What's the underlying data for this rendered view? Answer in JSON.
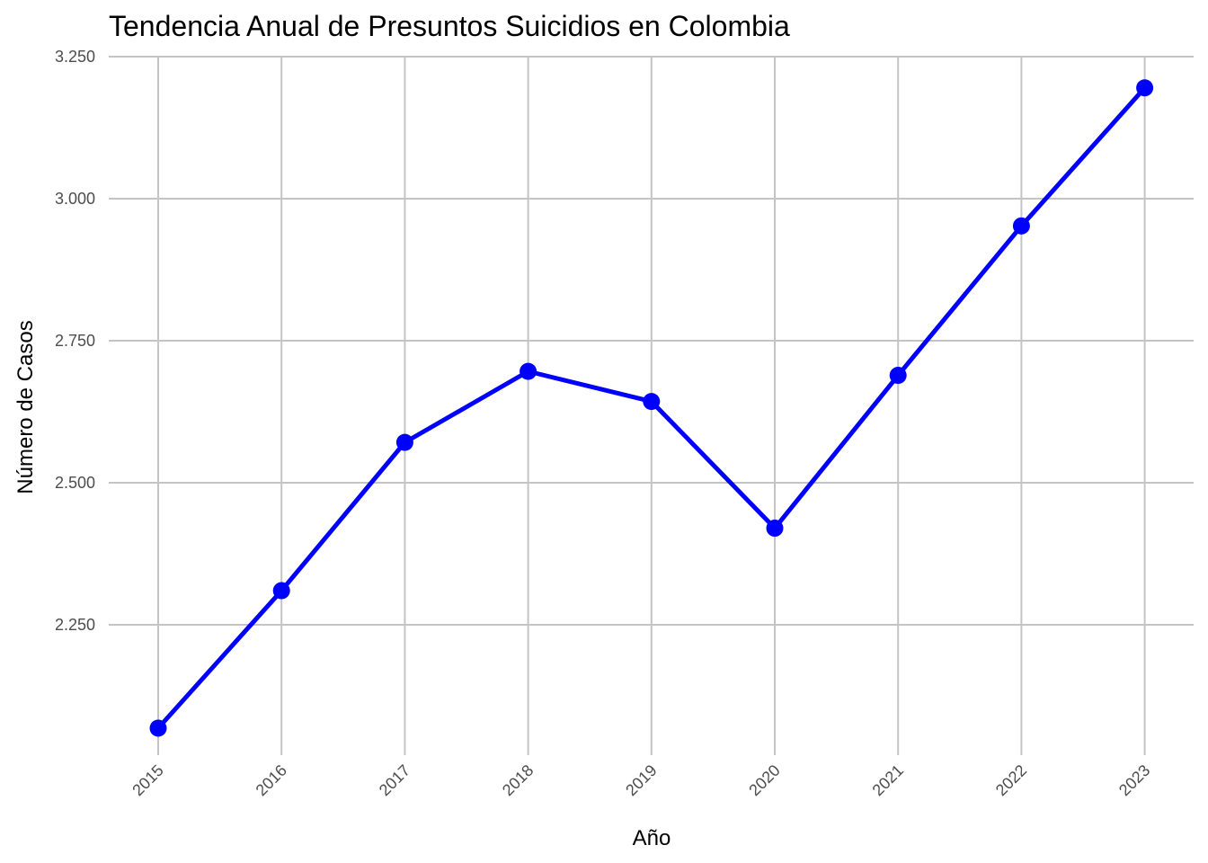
{
  "chart_data": {
    "type": "line",
    "title": "Tendencia Anual de Presuntos Suicidios en Colombia",
    "xlabel": "Año",
    "ylabel": "Número de Casos",
    "x": [
      2015,
      2016,
      2017,
      2018,
      2019,
      2020,
      2021,
      2022,
      2023
    ],
    "x_tick_labels": [
      "2015",
      "2016",
      "2017",
      "2018",
      "2019",
      "2020",
      "2021",
      "2022",
      "2023"
    ],
    "series": [
      {
        "values": [
          2068,
          2310,
          2571,
          2696,
          2643,
          2420,
          2689,
          2952,
          3195
        ]
      }
    ],
    "y_ticks": [
      2250,
      2500,
      2750,
      3000,
      3250
    ],
    "y_tick_labels": [
      "2.250",
      "2.500",
      "2.750",
      "3.000",
      "3.250"
    ],
    "ylim": [
      2068,
      3250
    ],
    "grid": true,
    "legend": "none",
    "colors": {
      "line": "#0000ff",
      "point": "#0000ff",
      "grid": "#c4c4c4",
      "tick_text": "#4d4d4d",
      "title_text": "#000000",
      "background": "#ffffff"
    }
  }
}
